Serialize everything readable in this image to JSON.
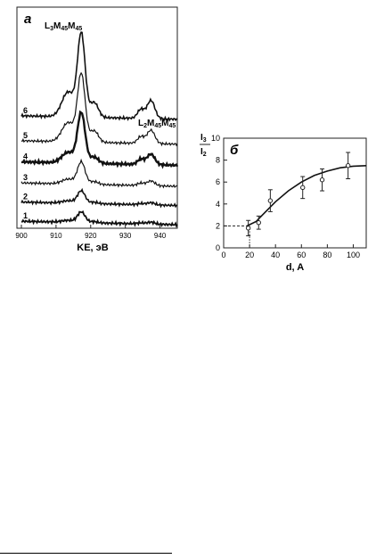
{
  "chart_data": [
    {
      "type": "line",
      "panel_label": "а",
      "xlabel": "KE, эВ",
      "ylabel": "",
      "xlim": [
        900,
        945
      ],
      "x_ticks": [
        900,
        910,
        920,
        930,
        940
      ],
      "annotations": [
        {
          "text": "L",
          "sub1": "3",
          "mid1": "M",
          "sub2": "45",
          "mid2": "M",
          "sub3": "45"
        },
        {
          "text": "L",
          "sub1": "2",
          "mid1": "M",
          "sub2": "45",
          "mid2": "M",
          "sub3": "45"
        }
      ],
      "series": [
        {
          "name": "1",
          "baseline": 0.0,
          "l3_peak": 0.55,
          "l3_shoulder": 0.1,
          "l2_peak": 0.1,
          "weight": 1.8
        },
        {
          "name": "2",
          "baseline": 1.0,
          "l3_peak": 0.65,
          "l3_shoulder": 0.12,
          "l2_peak": 0.12,
          "weight": 1.6
        },
        {
          "name": "3",
          "baseline": 2.0,
          "l3_peak": 1.15,
          "l3_shoulder": 0.25,
          "l2_peak": 0.25,
          "weight": 1.2
        },
        {
          "name": "4",
          "baseline": 3.1,
          "l3_peak": 2.6,
          "l3_shoulder": 0.55,
          "l2_peak": 0.55,
          "weight": 2.4
        },
        {
          "name": "5",
          "baseline": 4.2,
          "l3_peak": 3.5,
          "l3_shoulder": 1.0,
          "l2_peak": 0.7,
          "weight": 1.2
        },
        {
          "name": "6",
          "baseline": 5.5,
          "l3_peak": 4.3,
          "l3_shoulder": 1.3,
          "l2_peak": 0.95,
          "weight": 1.6
        }
      ]
    },
    {
      "type": "scatter",
      "panel_label": "б",
      "ylabel_num": "I",
      "ylabel_num_sub": "3",
      "ylabel_den": "I",
      "ylabel_den_sub": "2",
      "xlabel": "d, A",
      "xlim": [
        0,
        110
      ],
      "ylim": [
        0,
        10
      ],
      "x_ticks": [
        0,
        20,
        40,
        60,
        80,
        100
      ],
      "y_ticks": [
        0,
        2,
        4,
        6,
        8,
        10
      ],
      "points": [
        {
          "x": 19,
          "y": 1.8,
          "err": 0.7
        },
        {
          "x": 27,
          "y": 2.3,
          "err": 0.6
        },
        {
          "x": 36,
          "y": 4.3,
          "err": 1.0
        },
        {
          "x": 61,
          "y": 5.5,
          "err": 1.0
        },
        {
          "x": 76,
          "y": 6.2,
          "err": 1.0
        },
        {
          "x": 96,
          "y": 7.5,
          "err": 1.2
        }
      ],
      "fit_curve": [
        {
          "x": 18,
          "y": 2.0
        },
        {
          "x": 25,
          "y": 2.4
        },
        {
          "x": 30,
          "y": 3.0
        },
        {
          "x": 40,
          "y": 4.2
        },
        {
          "x": 50,
          "y": 5.2
        },
        {
          "x": 60,
          "y": 6.0
        },
        {
          "x": 70,
          "y": 6.6
        },
        {
          "x": 80,
          "y": 7.0
        },
        {
          "x": 90,
          "y": 7.3
        },
        {
          "x": 100,
          "y": 7.45
        },
        {
          "x": 110,
          "y": 7.5
        }
      ],
      "reference_line": {
        "x": 20,
        "y": 2
      }
    }
  ]
}
